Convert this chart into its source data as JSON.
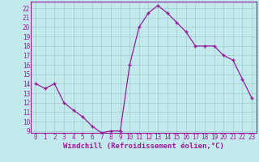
{
  "x": [
    0,
    1,
    2,
    3,
    4,
    5,
    6,
    7,
    8,
    9,
    10,
    11,
    12,
    13,
    14,
    15,
    16,
    17,
    18,
    19,
    20,
    21,
    22,
    23
  ],
  "y": [
    14,
    13.5,
    14,
    12,
    11.2,
    10.5,
    9.5,
    8.8,
    9.0,
    9.0,
    16.0,
    20.0,
    21.5,
    22.3,
    21.5,
    20.5,
    19.5,
    18.0,
    18.0,
    18.0,
    17.0,
    16.5,
    14.5,
    12.5
  ],
  "line_color": "#9b1a9b",
  "marker": "+",
  "bg_color": "#c2eaec",
  "grid_color": "#a0ccce",
  "xlabel": "Windchill (Refroidissement éolien,°C)",
  "xlabel_color": "#9b1a9b",
  "tick_color": "#9b1a9b",
  "ylim": [
    8.8,
    22.7
  ],
  "xlim": [
    -0.5,
    23.5
  ],
  "yticks": [
    9,
    10,
    11,
    12,
    13,
    14,
    15,
    16,
    17,
    18,
    19,
    20,
    21,
    22
  ],
  "xticks": [
    0,
    1,
    2,
    3,
    4,
    5,
    6,
    7,
    8,
    9,
    10,
    11,
    12,
    13,
    14,
    15,
    16,
    17,
    18,
    19,
    20,
    21,
    22,
    23
  ],
  "tick_fontsize": 5.5,
  "xlabel_fontsize": 6.5,
  "marker_size": 3.5,
  "line_width": 0.9
}
